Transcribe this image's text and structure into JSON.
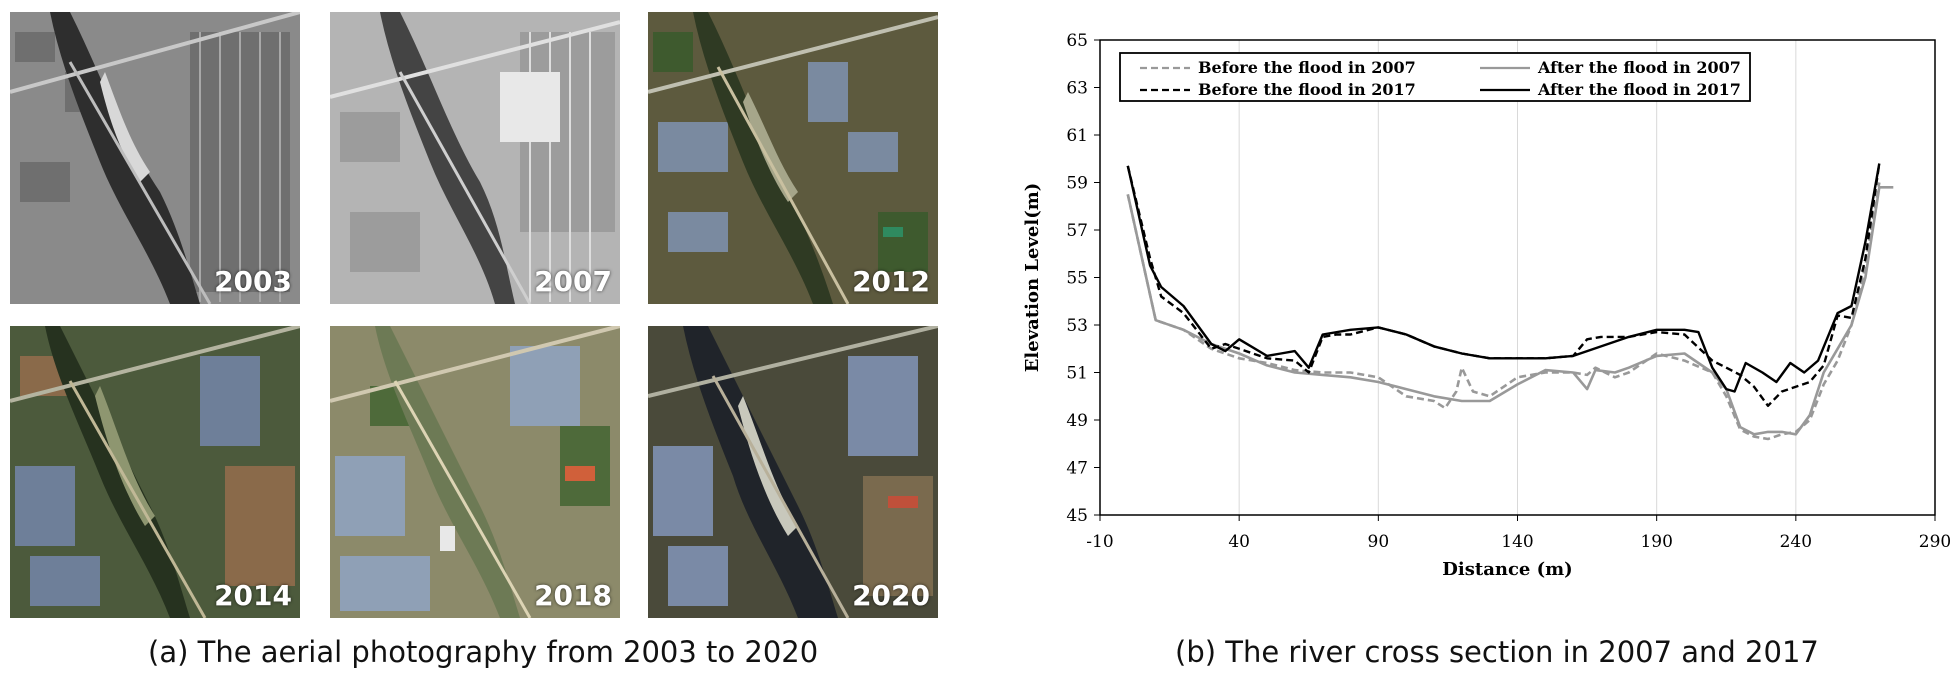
{
  "photos": {
    "years": [
      "2003",
      "2007",
      "2012",
      "2014",
      "2018",
      "2020"
    ],
    "caption": "(a) The aerial photography from 2003 to 2020"
  },
  "chart_caption": "(b) The river cross section in 2007 and 2017",
  "chart_data": {
    "type": "line",
    "title": "",
    "xlabel": "Distance (m)",
    "ylabel": "Elevation Level(m)",
    "xlim": [
      -10,
      290
    ],
    "ylim": [
      45,
      65
    ],
    "xticks": [
      "-10",
      "40",
      "90",
      "140",
      "190",
      "240",
      "290"
    ],
    "yticks": [
      "45",
      "47",
      "49",
      "51",
      "53",
      "55",
      "57",
      "59",
      "61",
      "63",
      "65"
    ],
    "series": [
      {
        "name": "Before the flood in 2007",
        "color": "#999999",
        "dash": "dashed",
        "x": [
          0,
          10,
          20,
          30,
          40,
          50,
          60,
          70,
          80,
          90,
          100,
          110,
          114,
          118,
          120,
          124,
          130,
          140,
          150,
          160,
          165,
          168,
          175,
          180,
          190,
          200,
          210,
          215,
          220,
          225,
          230,
          235,
          240,
          245,
          250,
          255,
          260,
          265,
          270
        ],
        "y": [
          58.5,
          53.2,
          52.8,
          52.0,
          51.6,
          51.4,
          51.1,
          51.0,
          51.0,
          50.8,
          50.0,
          49.8,
          49.5,
          50.2,
          51.2,
          50.2,
          50.0,
          50.8,
          51.0,
          51.0,
          50.9,
          51.2,
          50.8,
          51.0,
          51.8,
          51.5,
          51.0,
          50.0,
          48.6,
          48.3,
          48.2,
          48.4,
          48.5,
          49.0,
          50.5,
          51.5,
          53.0,
          55.5,
          59.0
        ]
      },
      {
        "name": "After the flood in 2007",
        "color": "#999999",
        "dash": "solid",
        "x": [
          0,
          10,
          20,
          30,
          40,
          50,
          60,
          70,
          80,
          90,
          100,
          110,
          120,
          130,
          140,
          150,
          160,
          165,
          168,
          175,
          180,
          190,
          200,
          210,
          215,
          220,
          225,
          230,
          235,
          240,
          245,
          250,
          255,
          260,
          265,
          270,
          275
        ],
        "y": [
          58.5,
          53.2,
          52.8,
          52.2,
          51.8,
          51.3,
          51.0,
          50.9,
          50.8,
          50.6,
          50.3,
          50.0,
          49.8,
          49.8,
          50.5,
          51.1,
          51.0,
          50.3,
          51.1,
          51.0,
          51.2,
          51.7,
          51.8,
          51.0,
          50.3,
          48.7,
          48.4,
          48.5,
          48.5,
          48.4,
          49.2,
          51.0,
          52.0,
          53.0,
          55.0,
          58.8,
          58.8
        ]
      },
      {
        "name": "Before the flood in 2017",
        "color": "#000000",
        "dash": "dashed",
        "x": [
          0,
          8,
          12,
          20,
          30,
          35,
          40,
          50,
          60,
          65,
          70,
          75,
          80,
          90,
          100,
          110,
          120,
          130,
          140,
          150,
          160,
          165,
          170,
          180,
          190,
          200,
          210,
          215,
          220,
          225,
          230,
          235,
          240,
          245,
          250,
          255,
          260,
          265,
          270
        ],
        "y": [
          59.7,
          55.8,
          54.2,
          53.5,
          52.0,
          52.2,
          52.0,
          51.6,
          51.5,
          51.0,
          52.5,
          52.6,
          52.6,
          52.9,
          52.6,
          52.1,
          51.8,
          51.6,
          51.6,
          51.6,
          51.7,
          52.4,
          52.5,
          52.5,
          52.7,
          52.6,
          51.5,
          51.2,
          50.9,
          50.4,
          49.6,
          50.2,
          50.4,
          50.6,
          51.3,
          53.4,
          53.3,
          55.8,
          59.8
        ]
      },
      {
        "name": "After the flood in 2017",
        "color": "#000000",
        "dash": "solid",
        "x": [
          0,
          8,
          12,
          20,
          30,
          35,
          40,
          50,
          55,
          60,
          65,
          70,
          80,
          90,
          100,
          110,
          120,
          130,
          140,
          150,
          160,
          170,
          180,
          190,
          200,
          205,
          210,
          215,
          218,
          222,
          228,
          233,
          238,
          243,
          248,
          255,
          260,
          265,
          270
        ],
        "y": [
          59.7,
          55.5,
          54.6,
          53.8,
          52.2,
          51.9,
          52.4,
          51.7,
          51.8,
          51.9,
          51.2,
          52.6,
          52.8,
          52.9,
          52.6,
          52.1,
          51.8,
          51.6,
          51.6,
          51.6,
          51.7,
          52.1,
          52.5,
          52.8,
          52.8,
          52.7,
          51.2,
          50.3,
          50.2,
          51.4,
          51.0,
          50.6,
          51.4,
          51.0,
          51.5,
          53.5,
          53.8,
          56.5,
          59.8
        ]
      }
    ]
  }
}
